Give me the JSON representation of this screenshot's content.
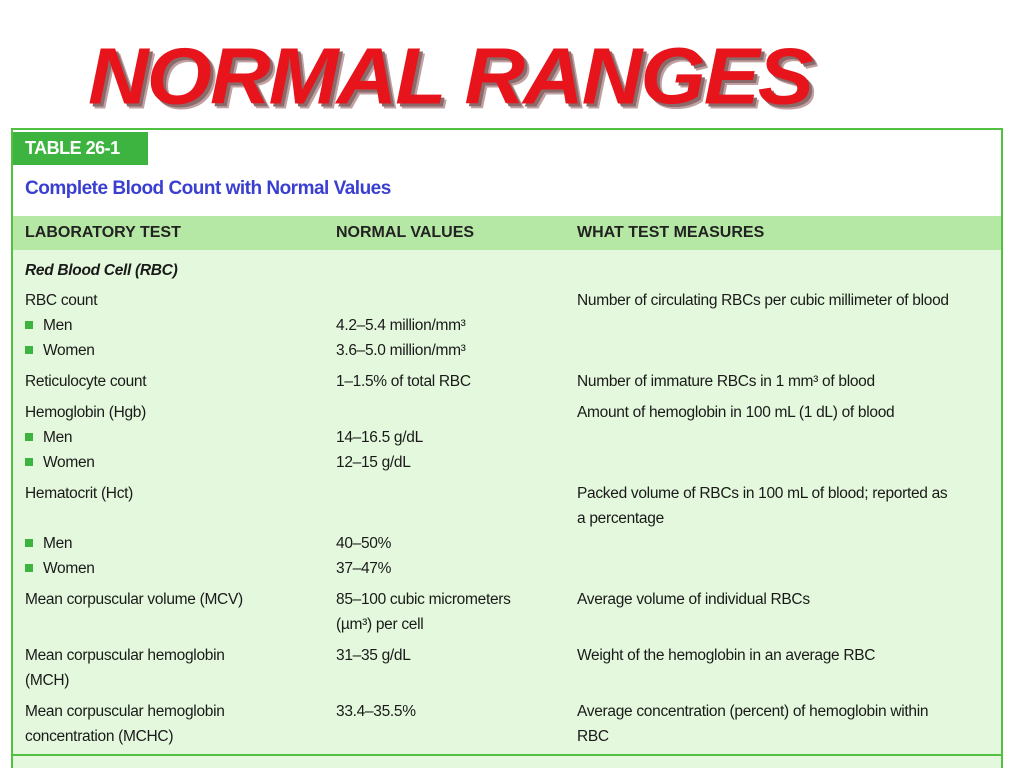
{
  "header": {
    "title": "NORMAL RANGES"
  },
  "table": {
    "tag": "TABLE 26-1",
    "caption": "Complete Blood Count with Normal Values",
    "columns": [
      "LABORATORY TEST",
      "NORMAL VALUES",
      "WHAT TEST MEASURES"
    ],
    "section": "Red Blood Cell (RBC)",
    "rows": [
      {
        "test": "RBC count",
        "measures": "Number of circulating RBCs per cubic millimeter of blood",
        "items": [
          {
            "label": "Men",
            "value": "4.2–5.4 million/mm³"
          },
          {
            "label": "Women",
            "value": "3.6–5.0 million/mm³"
          }
        ]
      },
      {
        "test": "Reticulocyte count",
        "value": "1–1.5% of total RBC",
        "measures": "Number of immature RBCs in 1 mm³ of blood"
      },
      {
        "test": "Hemoglobin (Hgb)",
        "measures": "Amount of hemoglobin in 100 mL (1 dL) of blood",
        "items": [
          {
            "label": "Men",
            "value": "14–16.5 g/dL"
          },
          {
            "label": "Women",
            "value": "12–15 g/dL"
          }
        ]
      },
      {
        "test": "Hematocrit (Hct)",
        "measures": "Packed volume of RBCs in 100 mL of blood; reported as a percentage",
        "items": [
          {
            "label": "Men",
            "value": "40–50%"
          },
          {
            "label": "Women",
            "value": "37–47%"
          }
        ]
      },
      {
        "test": "Mean corpuscular volume (MCV)",
        "value": "85–100 cubic micrometers (µm³) per cell",
        "measures": "Average volume of individual RBCs"
      },
      {
        "test": "Mean corpuscular hemoglobin (MCH)",
        "value": "31–35 g/dL",
        "measures": "Weight of the hemoglobin in an average RBC"
      },
      {
        "test": "Mean corpuscular hemoglobin concentration (MCHC)",
        "value": "33.4–35.5%",
        "measures": "Average concentration (percent) of hemoglobin within RBC"
      }
    ]
  }
}
